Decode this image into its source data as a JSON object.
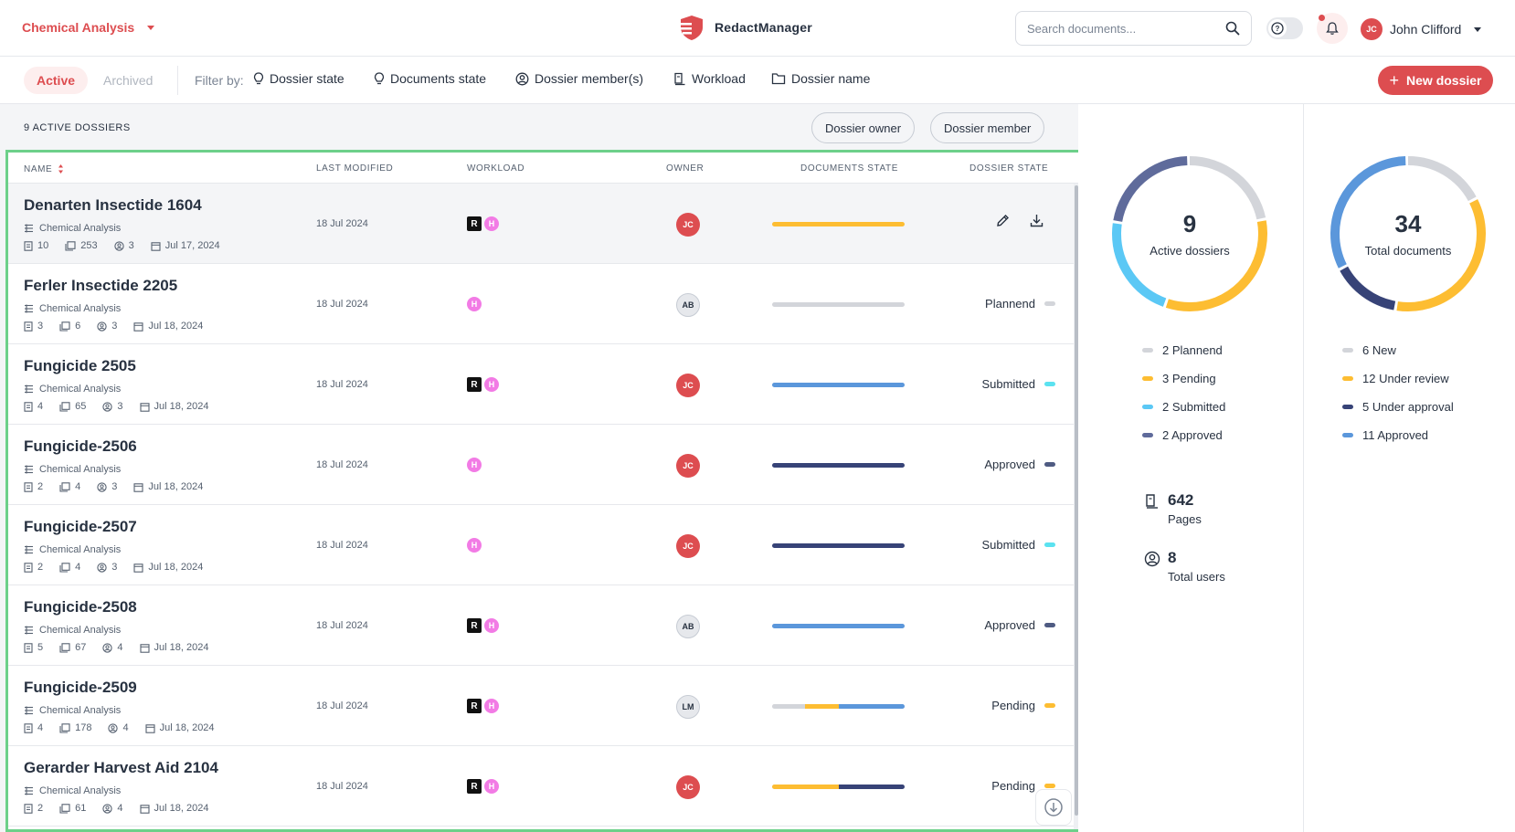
{
  "header": {
    "workspace": "Chemical Analysis",
    "app_name": "RedactManager",
    "search_placeholder": "Search documents...",
    "user": {
      "initials": "JC",
      "name": "John Clifford"
    }
  },
  "filterbar": {
    "tab_active": "Active",
    "tab_archived": "Archived",
    "filter_by_label": "Filter by:",
    "filters": [
      "Dossier state",
      "Documents state",
      "Dossier member(s)",
      "Workload",
      "Dossier name"
    ],
    "new_dossier_label": "New dossier"
  },
  "list": {
    "count_label": "9 ACTIVE DOSSIERS",
    "quick_filters": [
      "Dossier owner",
      "Dossier member"
    ],
    "columns": {
      "name": "NAME",
      "last_modified": "LAST MODIFIED",
      "workload": "WORKLOAD",
      "owner": "OWNER",
      "documents_state": "DOCUMENTS STATE",
      "dossier_state": "DOSSIER STATE"
    },
    "rows": [
      {
        "name": "Denarten Insectide 1604",
        "template": "Chemical Analysis",
        "docs": "10",
        "pages": "253",
        "members": "3",
        "created": "Jul 17, 2024",
        "modified": "18 Jul 2024",
        "workload_r": "R",
        "workload_h": "H",
        "owner": "JC",
        "owner_color": "red",
        "state": "",
        "state_color": "",
        "segments": [
          {
            "value": 1.0,
            "color": "#fdbd32"
          }
        ]
      },
      {
        "name": "Ferler Insectide 2205",
        "template": "Chemical Analysis",
        "docs": "3",
        "pages": "6",
        "members": "3",
        "created": "Jul 18, 2024",
        "modified": "18 Jul 2024",
        "workload_r": "",
        "workload_h": "H",
        "owner": "AB",
        "owner_color": "grey",
        "state": "Plannend",
        "state_color": "#d3d5da",
        "segments": [
          {
            "value": 1.0,
            "color": "#d3d5da"
          }
        ]
      },
      {
        "name": "Fungicide 2505",
        "template": "Chemical Analysis",
        "docs": "4",
        "pages": "65",
        "members": "3",
        "created": "Jul 18, 2024",
        "modified": "18 Jul 2024",
        "workload_r": "R",
        "workload_h": "H",
        "owner": "JC",
        "owner_color": "red",
        "state": "Submitted",
        "state_color": "#5be2f0",
        "segments": [
          {
            "value": 1.0,
            "color": "#5b97db"
          }
        ]
      },
      {
        "name": "Fungicide-2506",
        "template": "Chemical Analysis",
        "docs": "2",
        "pages": "4",
        "members": "3",
        "created": "Jul 18, 2024",
        "modified": "18 Jul 2024",
        "workload_r": "",
        "workload_h": "H",
        "owner": "JC",
        "owner_color": "red",
        "state": "Approved",
        "state_color": "#4f5b82",
        "segments": [
          {
            "value": 1.0,
            "color": "#374377"
          }
        ]
      },
      {
        "name": "Fungicide-2507",
        "template": "Chemical Analysis",
        "docs": "2",
        "pages": "4",
        "members": "3",
        "created": "Jul 18, 2024",
        "modified": "18 Jul 2024",
        "workload_r": "",
        "workload_h": "H",
        "owner": "JC",
        "owner_color": "red",
        "state": "Submitted",
        "state_color": "#5be2f0",
        "segments": [
          {
            "value": 1.0,
            "color": "#374377"
          }
        ]
      },
      {
        "name": "Fungicide-2508",
        "template": "Chemical Analysis",
        "docs": "5",
        "pages": "67",
        "members": "4",
        "created": "Jul 18, 2024",
        "modified": "18 Jul 2024",
        "workload_r": "R",
        "workload_h": "H",
        "owner": "AB",
        "owner_color": "grey",
        "state": "Approved",
        "state_color": "#4f5b82",
        "segments": [
          {
            "value": 1.0,
            "color": "#5b97db"
          }
        ]
      },
      {
        "name": "Fungicide-2509",
        "template": "Chemical Analysis",
        "docs": "4",
        "pages": "178",
        "members": "4",
        "created": "Jul 18, 2024",
        "modified": "18 Jul 2024",
        "workload_r": "R",
        "workload_h": "H",
        "owner": "LM",
        "owner_color": "grey",
        "state": "Pending",
        "state_color": "#fdbd32",
        "segments": [
          {
            "value": 0.25,
            "color": "#d3d5da"
          },
          {
            "value": 0.25,
            "color": "#fdbd32"
          },
          {
            "value": 0.5,
            "color": "#5b97db"
          }
        ]
      },
      {
        "name": "Gerarder Harvest Aid 2104",
        "template": "Chemical Analysis",
        "docs": "2",
        "pages": "61",
        "members": "4",
        "created": "Jul 18, 2024",
        "modified": "18 Jul 2024",
        "workload_r": "R",
        "workload_h": "H",
        "owner": "JC",
        "owner_color": "red",
        "state": "Pending",
        "state_color": "#fdbd32",
        "segments": [
          {
            "value": 0.5,
            "color": "#fdbd32"
          },
          {
            "value": 0.5,
            "color": "#374377"
          }
        ]
      }
    ]
  },
  "stats": {
    "dossiers": {
      "total": "9",
      "label": "Active dossiers",
      "legend": [
        {
          "label": "2 Plannend",
          "value": 2,
          "color": "#d3d5da"
        },
        {
          "label": "3 Pending",
          "value": 3,
          "color": "#fdbd32"
        },
        {
          "label": "2 Submitted",
          "value": 2,
          "color": "#5bc8f5"
        },
        {
          "label": "2 Approved",
          "value": 2,
          "color": "#5f6b9b"
        }
      ]
    },
    "documents": {
      "total": "34",
      "label": "Total documents",
      "legend": [
        {
          "label": "6 New",
          "value": 6,
          "color": "#d3d5da"
        },
        {
          "label": "12 Under review",
          "value": 12,
          "color": "#fdbd32"
        },
        {
          "label": "5 Under approval",
          "value": 5,
          "color": "#374377"
        },
        {
          "label": "11 Approved",
          "value": 11,
          "color": "#5b97db"
        }
      ]
    },
    "pages": {
      "value": "642",
      "label": "Pages"
    },
    "users": {
      "value": "8",
      "label": "Total users"
    }
  }
}
